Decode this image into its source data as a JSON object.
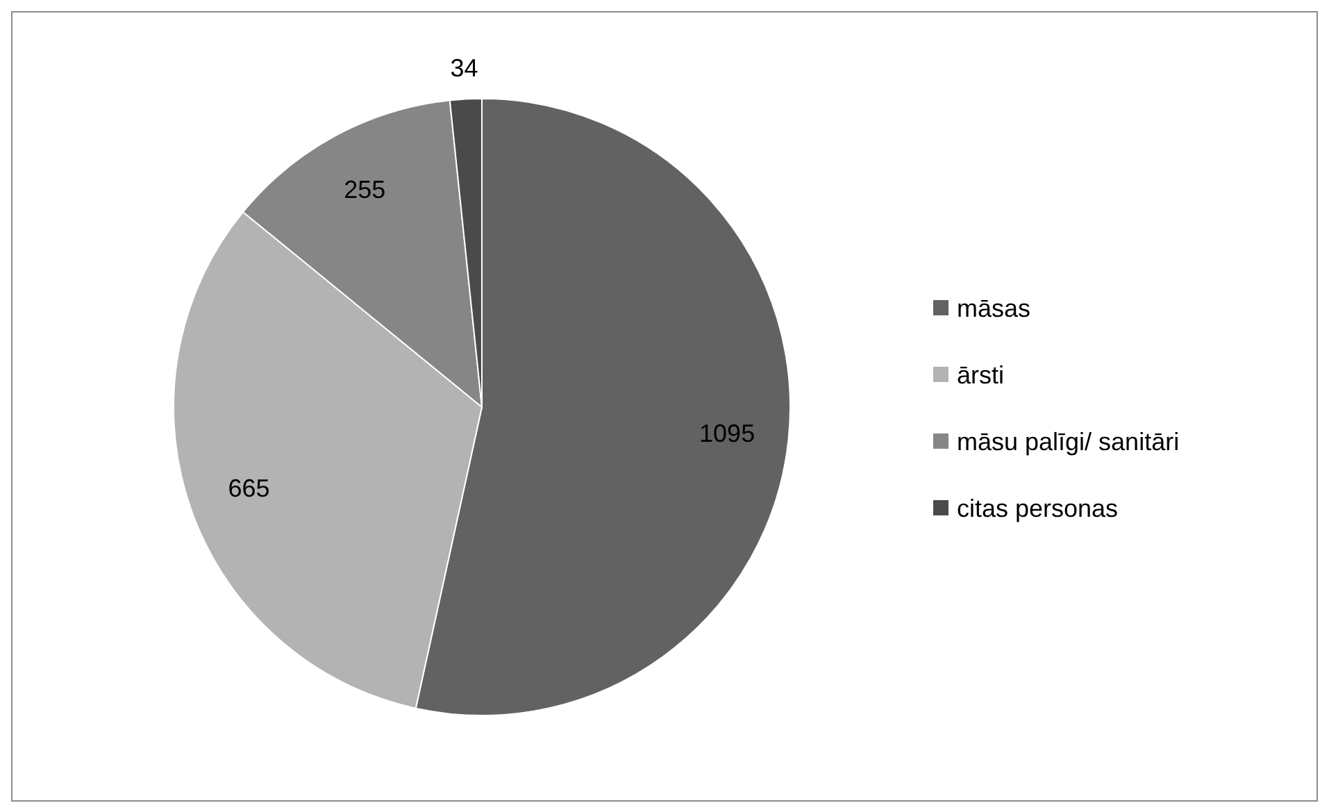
{
  "chart_data": {
    "type": "pie",
    "categories": [
      "māsas",
      "ārsti",
      "māsu palīgi/ sanitāri",
      "citas personas"
    ],
    "values": [
      1095,
      665,
      255,
      34
    ],
    "colors": [
      "#626262",
      "#b3b3b3",
      "#868686",
      "#4a4a4a"
    ],
    "data_labels": true,
    "legend": "right"
  }
}
